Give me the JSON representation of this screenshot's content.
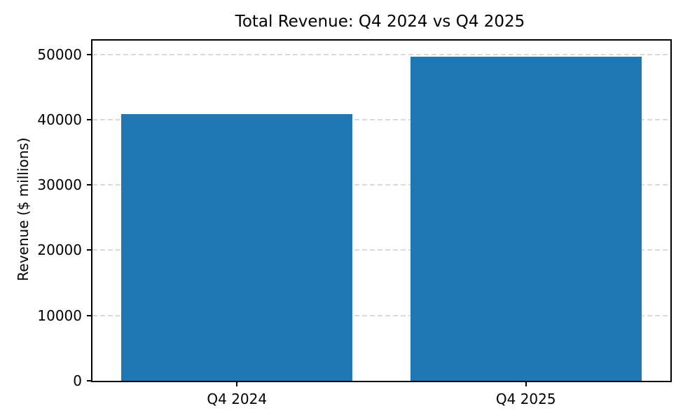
{
  "chart_data": {
    "type": "bar",
    "title": "Total Revenue: Q4 2024 vs Q4 2025",
    "xlabel": "",
    "ylabel": "Revenue ($ millions)",
    "categories": [
      "Q4 2024",
      "Q4 2025"
    ],
    "values": [
      40800,
      49600
    ],
    "ylim": [
      0,
      52100
    ],
    "yticks": [
      0,
      10000,
      20000,
      30000,
      40000,
      50000
    ],
    "ytick_labels": [
      "0",
      "10000",
      "20000",
      "30000",
      "40000",
      "50000"
    ],
    "grid": "horizontal dashed lines at y ticks",
    "legend": "none",
    "bar_color": "#1f77b4",
    "grid_color": "#d9d9d9",
    "spine_color": "#000000",
    "background_color": "#ffffff",
    "bar_width_fraction": 0.4
  }
}
